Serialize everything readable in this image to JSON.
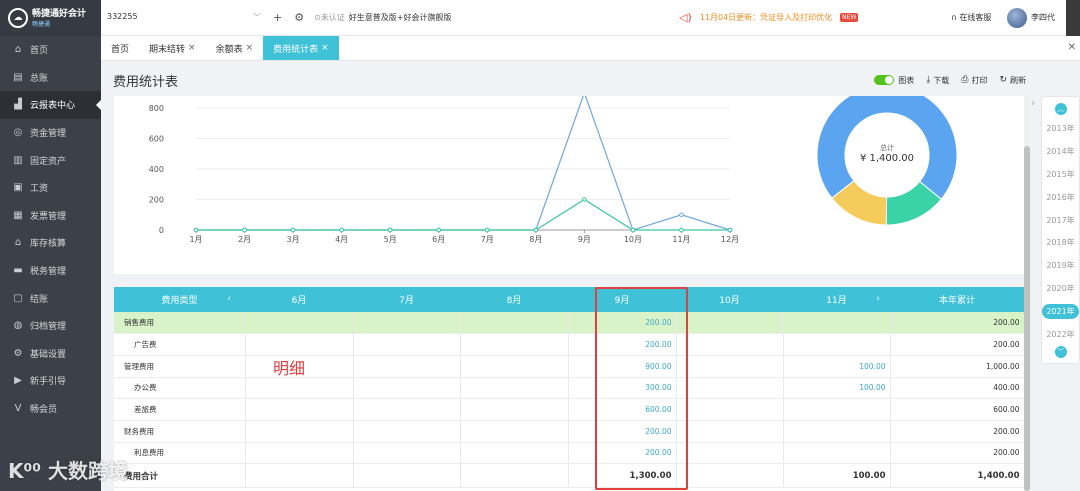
{
  "app": {
    "logo_text": "畅捷通好会计",
    "logo_sub": "畅捷通"
  },
  "topbar": {
    "company": "332255",
    "cert_status": "未认证",
    "version": "好生意普及版+好会计旗舰版",
    "notice": "11月04日更新：凭证导入及打印优化",
    "new_badge": "NEW",
    "service": "在线客服",
    "username": "李四代"
  },
  "sidebar": {
    "items": [
      {
        "label": "首页",
        "icon": "home-icon",
        "glyph": "⌂"
      },
      {
        "label": "总账",
        "icon": "ledger-icon",
        "glyph": "▤"
      },
      {
        "label": "云报表中心",
        "icon": "chart-icon",
        "glyph": "▟"
      },
      {
        "label": "资金管理",
        "icon": "fund-icon",
        "glyph": "◎"
      },
      {
        "label": "固定资产",
        "icon": "asset-icon",
        "glyph": "▥"
      },
      {
        "label": "工资",
        "icon": "salary-icon",
        "glyph": "▣"
      },
      {
        "label": "发票管理",
        "icon": "invoice-icon",
        "glyph": "▦"
      },
      {
        "label": "库存核算",
        "icon": "inventory-icon",
        "glyph": "⌂"
      },
      {
        "label": "税务管理",
        "icon": "tax-icon",
        "glyph": "▬"
      },
      {
        "label": "结账",
        "icon": "close-account-icon",
        "glyph": "▢"
      },
      {
        "label": "归档管理",
        "icon": "archive-icon",
        "glyph": "◍"
      },
      {
        "label": "基础设置",
        "icon": "settings-icon",
        "glyph": "⚙"
      },
      {
        "label": "新手引导",
        "icon": "guide-icon",
        "glyph": "▶"
      },
      {
        "label": "畅会员",
        "icon": "vip-icon",
        "glyph": "V"
      }
    ]
  },
  "tabs": [
    {
      "label": "首页",
      "closable": false
    },
    {
      "label": "期末结转",
      "closable": true
    },
    {
      "label": "余额表",
      "closable": true
    },
    {
      "label": "费用统计表",
      "closable": true
    }
  ],
  "page": {
    "title": "费用统计表",
    "tools": {
      "chart": "图表",
      "download": "下载",
      "print": "打印",
      "refresh": "刷新"
    }
  },
  "chart_data": [
    {
      "type": "line",
      "x": [
        "1月",
        "2月",
        "3月",
        "4月",
        "5月",
        "6月",
        "7月",
        "8月",
        "9月",
        "10月",
        "11月",
        "12月"
      ],
      "yticks": [
        0,
        200,
        400,
        600,
        800
      ],
      "series": [
        {
          "color": "#6fa8dc",
          "values": [
            0,
            0,
            0,
            0,
            0,
            0,
            0,
            0,
            900,
            0,
            100,
            0
          ]
        },
        {
          "color": "#3cc6a0",
          "values": [
            0,
            0,
            0,
            0,
            0,
            0,
            0,
            0,
            200,
            0,
            0,
            0
          ]
        }
      ]
    },
    {
      "type": "pie",
      "center_label": "总计",
      "center_value": "¥ 1,400.00",
      "slices": [
        {
          "value": 1000,
          "color": "#5aa4f0"
        },
        {
          "value": 200,
          "color": "#3ad3a8"
        },
        {
          "value": 200,
          "color": "#f5cb5c"
        }
      ]
    }
  ],
  "years": [
    "2013年",
    "2014年",
    "2015年",
    "2016年",
    "2017年",
    "2018年",
    "2019年",
    "2020年",
    "2021年",
    "2022年"
  ],
  "selected_year": "2021年",
  "table": {
    "headers": [
      "费用类型",
      "6月",
      "7月",
      "8月",
      "9月",
      "10月",
      "11月",
      "本年累计"
    ],
    "rows": [
      {
        "name": "销售费用",
        "level": 0,
        "cells": [
          "",
          "",
          "",
          "200.00",
          "",
          "",
          "200.00"
        ]
      },
      {
        "name": "广告费",
        "level": 1,
        "cells": [
          "",
          "",
          "",
          "200.00",
          "",
          "",
          "200.00"
        ]
      },
      {
        "name": "管理费用",
        "level": 0,
        "cells": [
          "",
          "",
          "",
          "900.00",
          "",
          "100.00",
          "1,000.00"
        ]
      },
      {
        "name": "办公费",
        "level": 1,
        "cells": [
          "",
          "",
          "",
          "300.00",
          "",
          "100.00",
          "400.00"
        ]
      },
      {
        "name": "差旅费",
        "level": 1,
        "cells": [
          "",
          "",
          "",
          "600.00",
          "",
          "",
          "600.00"
        ]
      },
      {
        "name": "财务费用",
        "level": 0,
        "cells": [
          "",
          "",
          "",
          "200.00",
          "",
          "",
          "200.00"
        ]
      },
      {
        "name": "利息费用",
        "level": 1,
        "cells": [
          "",
          "",
          "",
          "200.00",
          "",
          "",
          "200.00"
        ]
      }
    ],
    "total": {
      "name": "费用合计",
      "cells": [
        "",
        "",
        "",
        "1,300.00",
        "",
        "100.00",
        "1,400.00"
      ]
    }
  },
  "annotation": "明细",
  "watermark": "大数跨境"
}
